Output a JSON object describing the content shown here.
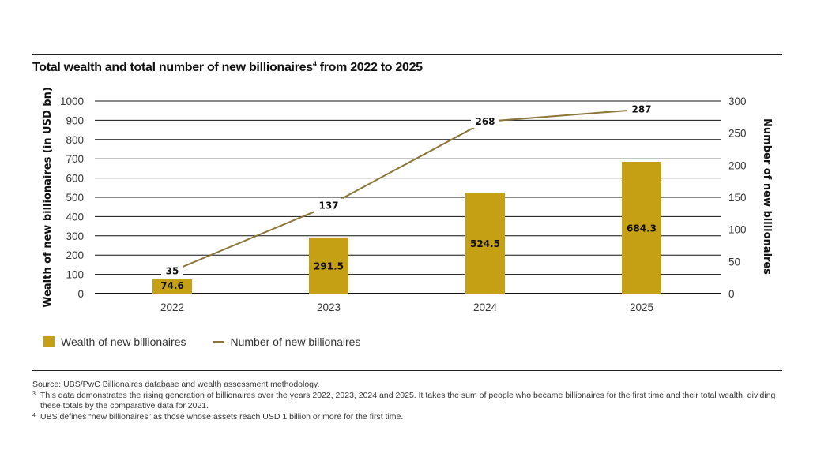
{
  "title": {
    "text": "Total wealth and total number of new billionaires",
    "superscript": "4",
    "suffix": " from 2022 to 2025"
  },
  "chart_data": {
    "type": "bar",
    "title": "Total wealth and total number of new billionaires4 from 2022 to 2025",
    "categories": [
      "2022",
      "2023",
      "2024",
      "2025"
    ],
    "series": [
      {
        "name": "Wealth of new billionaires",
        "type": "bar",
        "axis": "left",
        "values": [
          74.6,
          291.5,
          524.5,
          684.3
        ],
        "labels": [
          "74.6",
          "291.5",
          "524.5",
          "684.3"
        ],
        "color": "#C5A014"
      },
      {
        "name": "Number of new billionaires",
        "type": "line",
        "axis": "right",
        "values": [
          35,
          137,
          268,
          287
        ],
        "labels": [
          "35",
          "137",
          "268",
          "287"
        ],
        "color": "#8B7539"
      }
    ],
    "ylabel": "Wealth of new billionaires (in USD bn)",
    "ylabel_right": "Number of new billionaires",
    "xlabel": "",
    "ylim": [
      0,
      1000
    ],
    "ylim_right": [
      0,
      300
    ],
    "yticks": [
      "0",
      "100",
      "200",
      "300",
      "400",
      "500",
      "600",
      "700",
      "800",
      "900",
      "1000"
    ],
    "yticks_right": [
      "0",
      "50",
      "100",
      "150",
      "200",
      "250",
      "300"
    ],
    "grid": true,
    "legend": "bottom-left"
  },
  "legend": {
    "items": [
      {
        "label": "Wealth of new billionaires",
        "kind": "bar",
        "color": "#C5A014"
      },
      {
        "label": "Number of new billionaires",
        "kind": "line",
        "color": "#8B7539"
      }
    ]
  },
  "notes": {
    "source": "Source: UBS/PwC Billionaires database and wealth assessment methodology.",
    "footnote3_mark": "3",
    "footnote3": "This data demonstrates the rising generation of billionaires over the years 2022, 2023, 2024 and 2025. It takes the sum of people who became billionaires for the first time and their total wealth, dividing these totals by the comparative data for 2021.",
    "footnote4_mark": "4",
    "footnote4": "UBS defines “new billionaires” as those whose assets reach USD 1 billion or more for the first time."
  }
}
